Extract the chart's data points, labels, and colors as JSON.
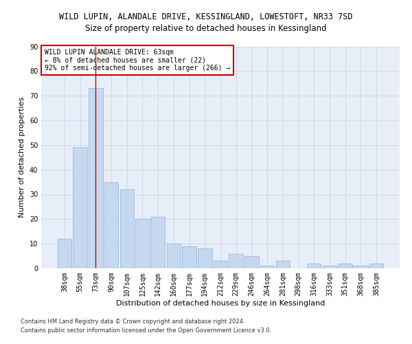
{
  "title_line1": "WILD LUPIN, ALANDALE DRIVE, KESSINGLAND, LOWESTOFT, NR33 7SD",
  "title_line2": "Size of property relative to detached houses in Kessingland",
  "xlabel": "Distribution of detached houses by size in Kessingland",
  "ylabel": "Number of detached properties",
  "categories": [
    "38sqm",
    "55sqm",
    "73sqm",
    "90sqm",
    "107sqm",
    "125sqm",
    "142sqm",
    "160sqm",
    "177sqm",
    "194sqm",
    "212sqm",
    "229sqm",
    "246sqm",
    "264sqm",
    "281sqm",
    "298sqm",
    "316sqm",
    "333sqm",
    "351sqm",
    "368sqm",
    "385sqm"
  ],
  "values": [
    12,
    49,
    73,
    35,
    32,
    20,
    21,
    10,
    9,
    8,
    3,
    6,
    5,
    1,
    3,
    0,
    2,
    1,
    2,
    1,
    2
  ],
  "bar_color": "#c5d8f0",
  "bar_edge_color": "#8ab4d8",
  "highlight_bar_index": 2,
  "highlight_line_color": "#cc0000",
  "ylim": [
    0,
    90
  ],
  "yticks": [
    0,
    10,
    20,
    30,
    40,
    50,
    60,
    70,
    80,
    90
  ],
  "grid_color": "#c8d4e8",
  "background_color": "#e8eef8",
  "annotation_text_line1": "WILD LUPIN ALANDALE DRIVE: 63sqm",
  "annotation_text_line2": "← 8% of detached houses are smaller (22)",
  "annotation_text_line3": "92% of semi-detached houses are larger (266) →",
  "annotation_box_facecolor": "#ffffff",
  "annotation_box_edgecolor": "#cc0000",
  "footer_line1": "Contains HM Land Registry data © Crown copyright and database right 2024.",
  "footer_line2": "Contains public sector information licensed under the Open Government Licence v3.0.",
  "title_fontsize": 8.5,
  "subtitle_fontsize": 8.5,
  "axis_label_fontsize": 8,
  "tick_fontsize": 7,
  "annotation_fontsize": 7,
  "footer_fontsize": 6
}
